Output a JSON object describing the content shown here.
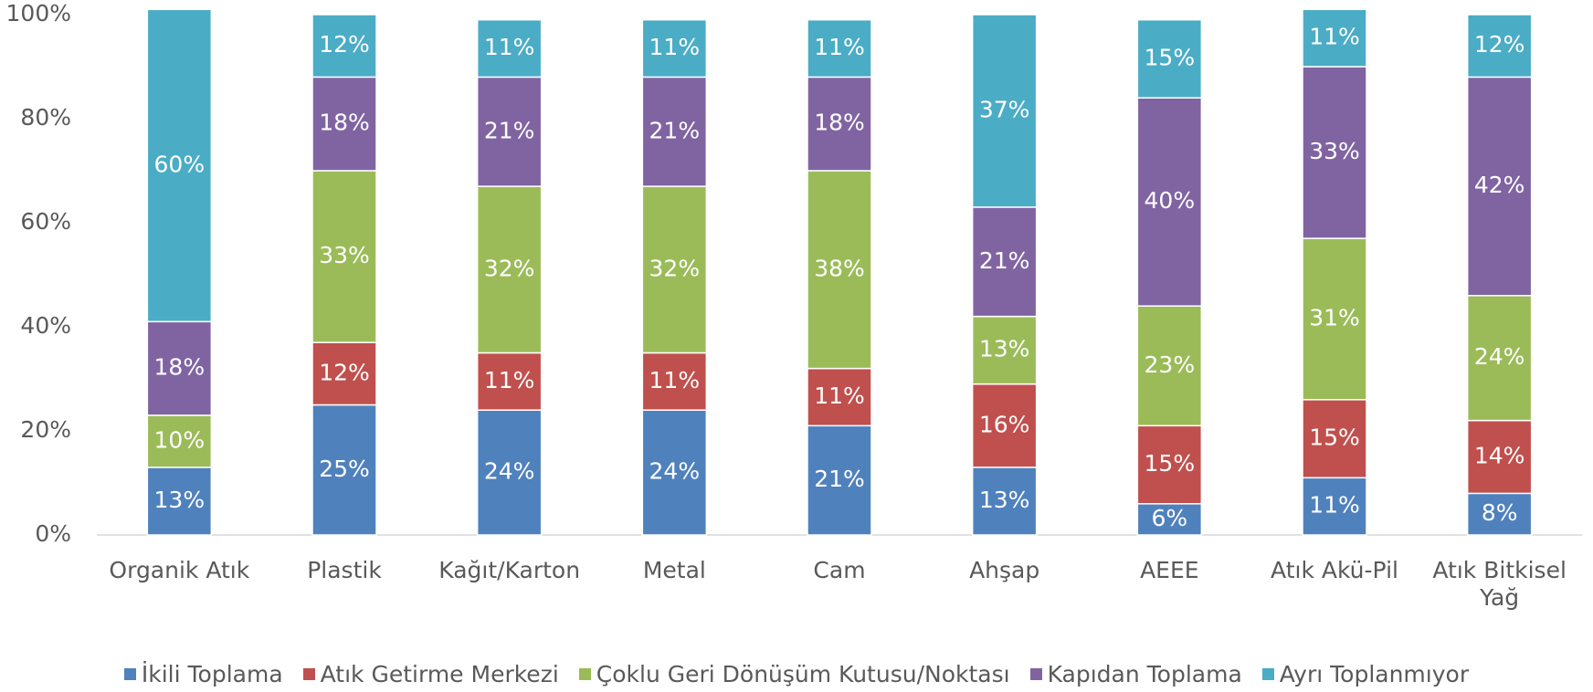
{
  "chart_data": {
    "type": "stacked_bar",
    "categories": [
      "Organik Atık",
      "Plastik",
      "Kağıt/Karton",
      "Metal",
      "Cam",
      "Ahşap",
      "AEEE",
      "Atık Akü-Pil",
      "Atık Bitkisel Yağ"
    ],
    "series": [
      {
        "name": "İkili Toplama",
        "color": "#4f81bd",
        "values": [
          13,
          25,
          24,
          24,
          21,
          13,
          6,
          11,
          8
        ],
        "value_labels": [
          "13%",
          "25%",
          "24%",
          "24%",
          "21%",
          "13%",
          "6%",
          "11%",
          "8%"
        ]
      },
      {
        "name": "Atık Getirme Merkezi",
        "color": "#c0504d",
        "values": [
          null,
          12,
          11,
          11,
          11,
          16,
          15,
          15,
          14
        ],
        "value_labels": [
          null,
          "12%",
          "11%",
          "11%",
          "11%",
          "16%",
          "15%",
          "15%",
          "14%"
        ]
      },
      {
        "name": "Çoklu Geri Dönüşüm Kutusu/Noktası",
        "color": "#9bbb59",
        "values": [
          10,
          33,
          32,
          32,
          38,
          13,
          23,
          31,
          24
        ],
        "value_labels": [
          "10%",
          "33%",
          "32%",
          "32%",
          "38%",
          "13%",
          "23%",
          "31%",
          "24%"
        ]
      },
      {
        "name": "Kapıdan Toplama",
        "color": "#8064a2",
        "values": [
          18,
          18,
          21,
          21,
          18,
          21,
          40,
          33,
          42
        ],
        "value_labels": [
          "18%",
          "18%",
          "21%",
          "21%",
          "18%",
          "21%",
          "40%",
          "33%",
          "42%"
        ]
      },
      {
        "name": "Ayrı Toplanmıyor",
        "color": "#4bacc6",
        "values": [
          60,
          12,
          11,
          11,
          11,
          37,
          15,
          11,
          12
        ],
        "value_labels": [
          "60%",
          "12%",
          "11%",
          "11%",
          "11%",
          "37%",
          "15%",
          "11%",
          "12%"
        ]
      }
    ],
    "ylim": [
      0,
      100
    ],
    "yticks": [
      {
        "value": 0,
        "label": "0%"
      },
      {
        "value": 20,
        "label": "20%"
      },
      {
        "value": 40,
        "label": "40%"
      },
      {
        "value": 60,
        "label": "60%"
      },
      {
        "value": 80,
        "label": "80%"
      },
      {
        "value": 100,
        "label": "100%"
      }
    ],
    "grid": false,
    "legend": "bottom"
  }
}
